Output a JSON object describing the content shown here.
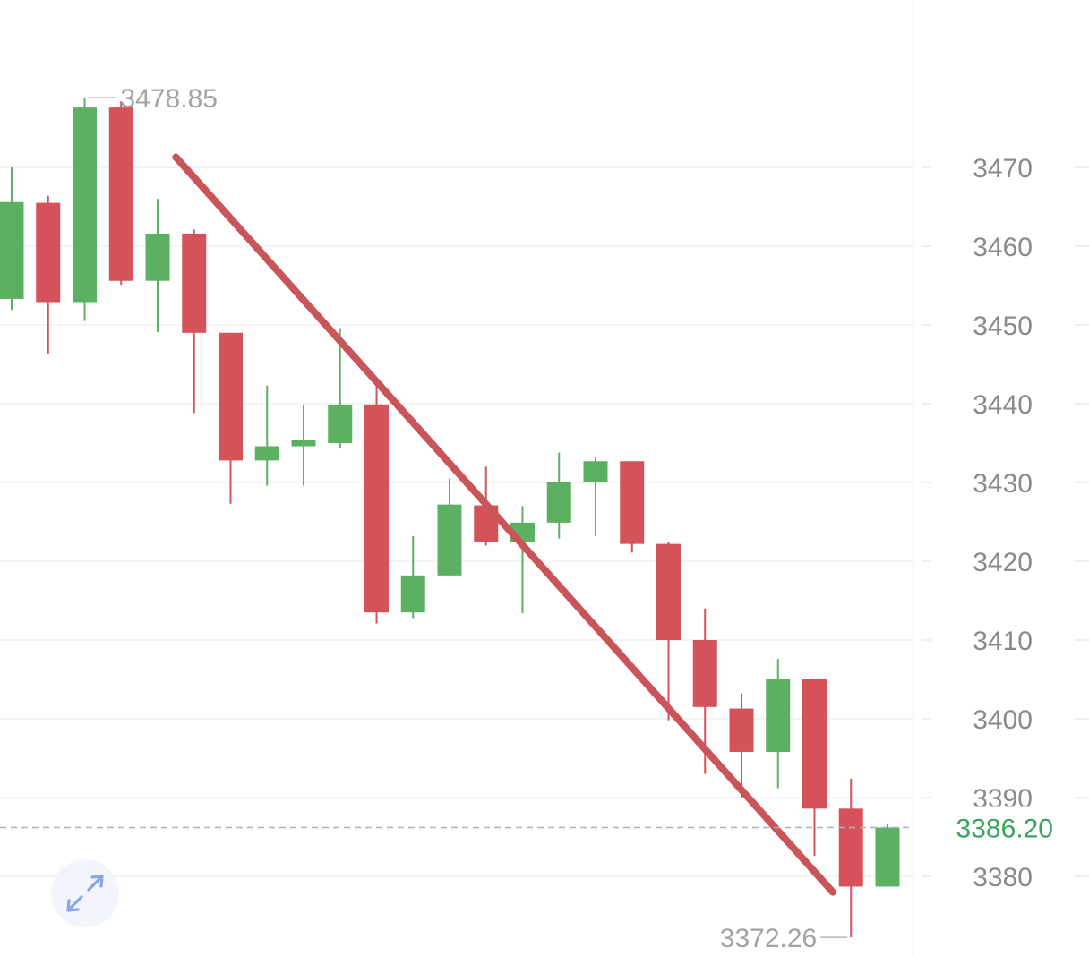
{
  "chart_data": {
    "type": "candlestick",
    "ylim": [
      3372.26,
      3478.85
    ],
    "grid": true,
    "y_ticks": [
      {
        "value": 3470,
        "label": "3470"
      },
      {
        "value": 3460,
        "label": "3460"
      },
      {
        "value": 3450,
        "label": "3450"
      },
      {
        "value": 3440,
        "label": "3440"
      },
      {
        "value": 3430,
        "label": "3430"
      },
      {
        "value": 3420,
        "label": "3420"
      },
      {
        "value": 3410,
        "label": "3410"
      },
      {
        "value": 3400,
        "label": "3400"
      },
      {
        "value": 3390,
        "label": "3390"
      },
      {
        "value": 3380,
        "label": "3380"
      }
    ],
    "candles": [
      {
        "open": 3453.3,
        "high": 3470.0,
        "low": 3451.9,
        "close": 3465.6
      },
      {
        "open": 3465.5,
        "high": 3466.4,
        "low": 3446.3,
        "close": 3452.9
      },
      {
        "open": 3452.9,
        "high": 3478.85,
        "low": 3450.5,
        "close": 3477.6
      },
      {
        "open": 3477.6,
        "high": 3478.4,
        "low": 3455.1,
        "close": 3455.6
      },
      {
        "open": 3455.6,
        "high": 3466.0,
        "low": 3449.1,
        "close": 3461.6
      },
      {
        "open": 3461.6,
        "high": 3462.1,
        "low": 3438.8,
        "close": 3449.0
      },
      {
        "open": 3449.0,
        "high": 3449.0,
        "low": 3427.3,
        "close": 3432.8
      },
      {
        "open": 3432.8,
        "high": 3442.3,
        "low": 3429.6,
        "close": 3434.6
      },
      {
        "open": 3434.6,
        "high": 3439.8,
        "low": 3429.6,
        "close": 3435.4
      },
      {
        "open": 3435.0,
        "high": 3449.6,
        "low": 3434.3,
        "close": 3439.9
      },
      {
        "open": 3439.9,
        "high": 3442.9,
        "low": 3412.1,
        "close": 3413.5
      },
      {
        "open": 3413.5,
        "high": 3423.2,
        "low": 3412.8,
        "close": 3418.2
      },
      {
        "open": 3418.2,
        "high": 3430.5,
        "low": 3418.2,
        "close": 3427.2
      },
      {
        "open": 3427.1,
        "high": 3432.0,
        "low": 3422.0,
        "close": 3422.4
      },
      {
        "open": 3422.4,
        "high": 3427.0,
        "low": 3413.4,
        "close": 3424.9
      },
      {
        "open": 3424.9,
        "high": 3433.8,
        "low": 3422.9,
        "close": 3430.0
      },
      {
        "open": 3430.0,
        "high": 3433.3,
        "low": 3423.2,
        "close": 3432.7
      },
      {
        "open": 3432.7,
        "high": 3432.7,
        "low": 3421.1,
        "close": 3422.2
      },
      {
        "open": 3422.2,
        "high": 3422.4,
        "low": 3399.8,
        "close": 3410.0
      },
      {
        "open": 3410.0,
        "high": 3414.0,
        "low": 3393.0,
        "close": 3401.5
      },
      {
        "open": 3401.3,
        "high": 3403.2,
        "low": 3390.0,
        "close": 3395.8
      },
      {
        "open": 3395.8,
        "high": 3407.6,
        "low": 3391.2,
        "close": 3405.0
      },
      {
        "open": 3405.0,
        "high": 3405.0,
        "low": 3382.6,
        "close": 3388.6
      },
      {
        "open": 3388.6,
        "high": 3392.4,
        "low": 3372.26,
        "close": 3378.7
      },
      {
        "open": 3378.7,
        "high": 3386.6,
        "low": 3378.7,
        "close": 3386.2
      }
    ],
    "trendline": {
      "start": {
        "candle_index": 4.5,
        "value": 3471.3
      },
      "end": {
        "candle_index": 22.5,
        "value": 3378.0
      }
    },
    "annotations": {
      "max": {
        "value": 3478.85,
        "label": "3478.85",
        "candle_index": 2
      },
      "min": {
        "value": 3372.26,
        "label": "3372.26",
        "candle_index": 23
      },
      "current": {
        "value": 3386.2,
        "label": "3386.20"
      }
    },
    "colors": {
      "up": "#5cb061",
      "down": "#d6525a",
      "trendline": "#c9555a",
      "current_label": "#3aa55a",
      "grid": "#eeeeee",
      "axis_text": "#8a8a8a",
      "annotation_text": "#a3a3a3"
    },
    "controls": {
      "expand_icon": "expand-arrows-icon"
    }
  }
}
